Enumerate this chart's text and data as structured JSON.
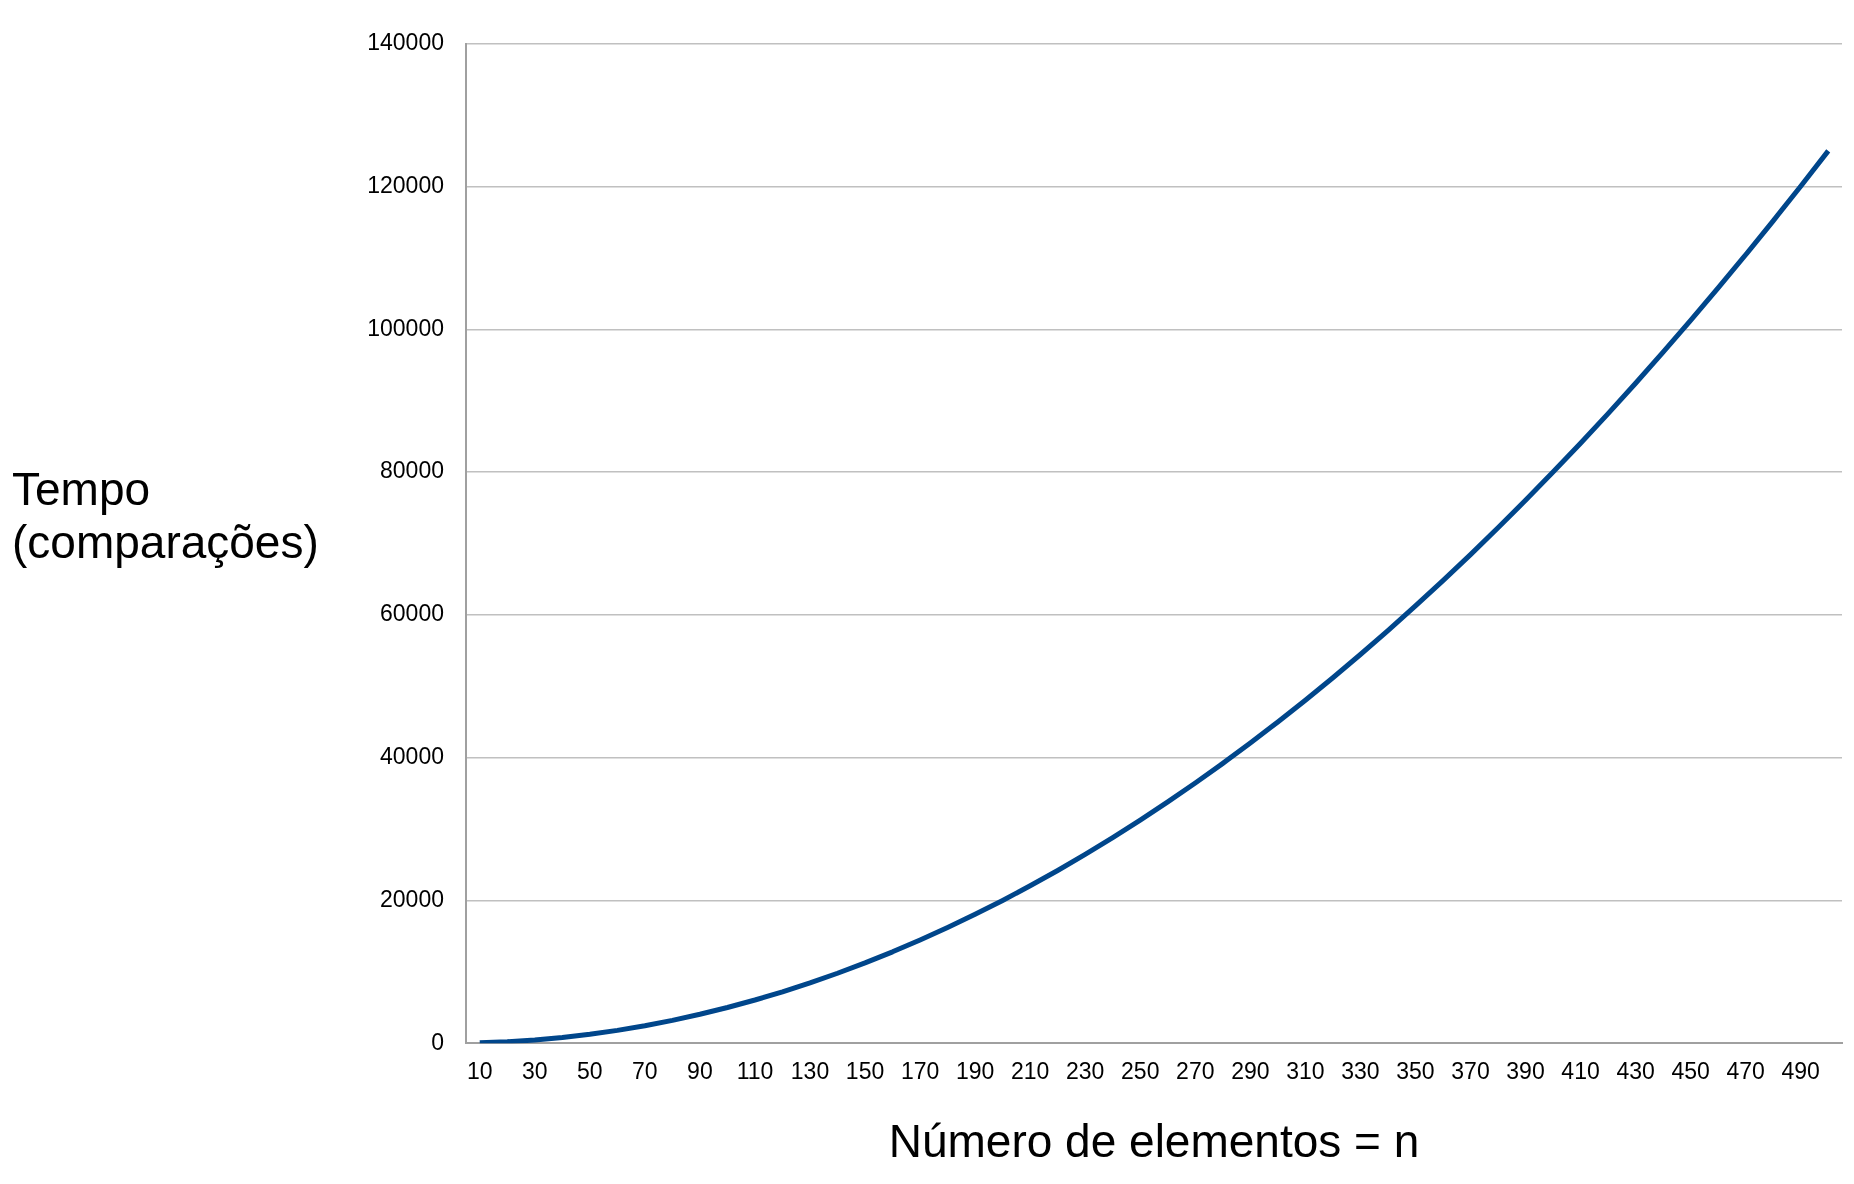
{
  "chart_data": {
    "type": "line",
    "xlabel": "Número de elementos = n",
    "ylabel": "Tempo (comparações)",
    "categories": [
      "10",
      null,
      "30",
      null,
      "50",
      null,
      "70",
      null,
      "90",
      null,
      "110",
      null,
      "130",
      null,
      "150",
      null,
      "170",
      null,
      "190",
      null,
      "210",
      null,
      "230",
      null,
      "250",
      null,
      "270",
      null,
      "290",
      null,
      "310",
      null,
      "330",
      null,
      "350",
      null,
      "370",
      null,
      "390",
      null,
      "410",
      null,
      "430",
      null,
      "450",
      null,
      "470",
      null,
      "490",
      null
    ],
    "series": [
      {
        "color": "#00468b",
        "values": [
          50,
          200,
          450,
          800,
          1250,
          1800,
          2450,
          3200,
          4050,
          5000,
          6050,
          7200,
          8450,
          9800,
          11250,
          12800,
          14450,
          16200,
          18050,
          20000,
          22050,
          24200,
          26450,
          28800,
          31250,
          33800,
          36450,
          39200,
          42050,
          45000,
          48050,
          51200,
          54450,
          57800,
          61250,
          64800,
          68450,
          72200,
          76050,
          80000,
          84050,
          88200,
          92450,
          96800,
          101250,
          105800,
          110450,
          115200,
          120050,
          125000
        ]
      }
    ],
    "ylim": [
      0,
      140000
    ],
    "yticks": [
      0,
      20000,
      40000,
      60000,
      80000,
      100000,
      120000,
      140000
    ],
    "grid": "y",
    "legend": false,
    "marker": "none",
    "line_style": "solid"
  }
}
